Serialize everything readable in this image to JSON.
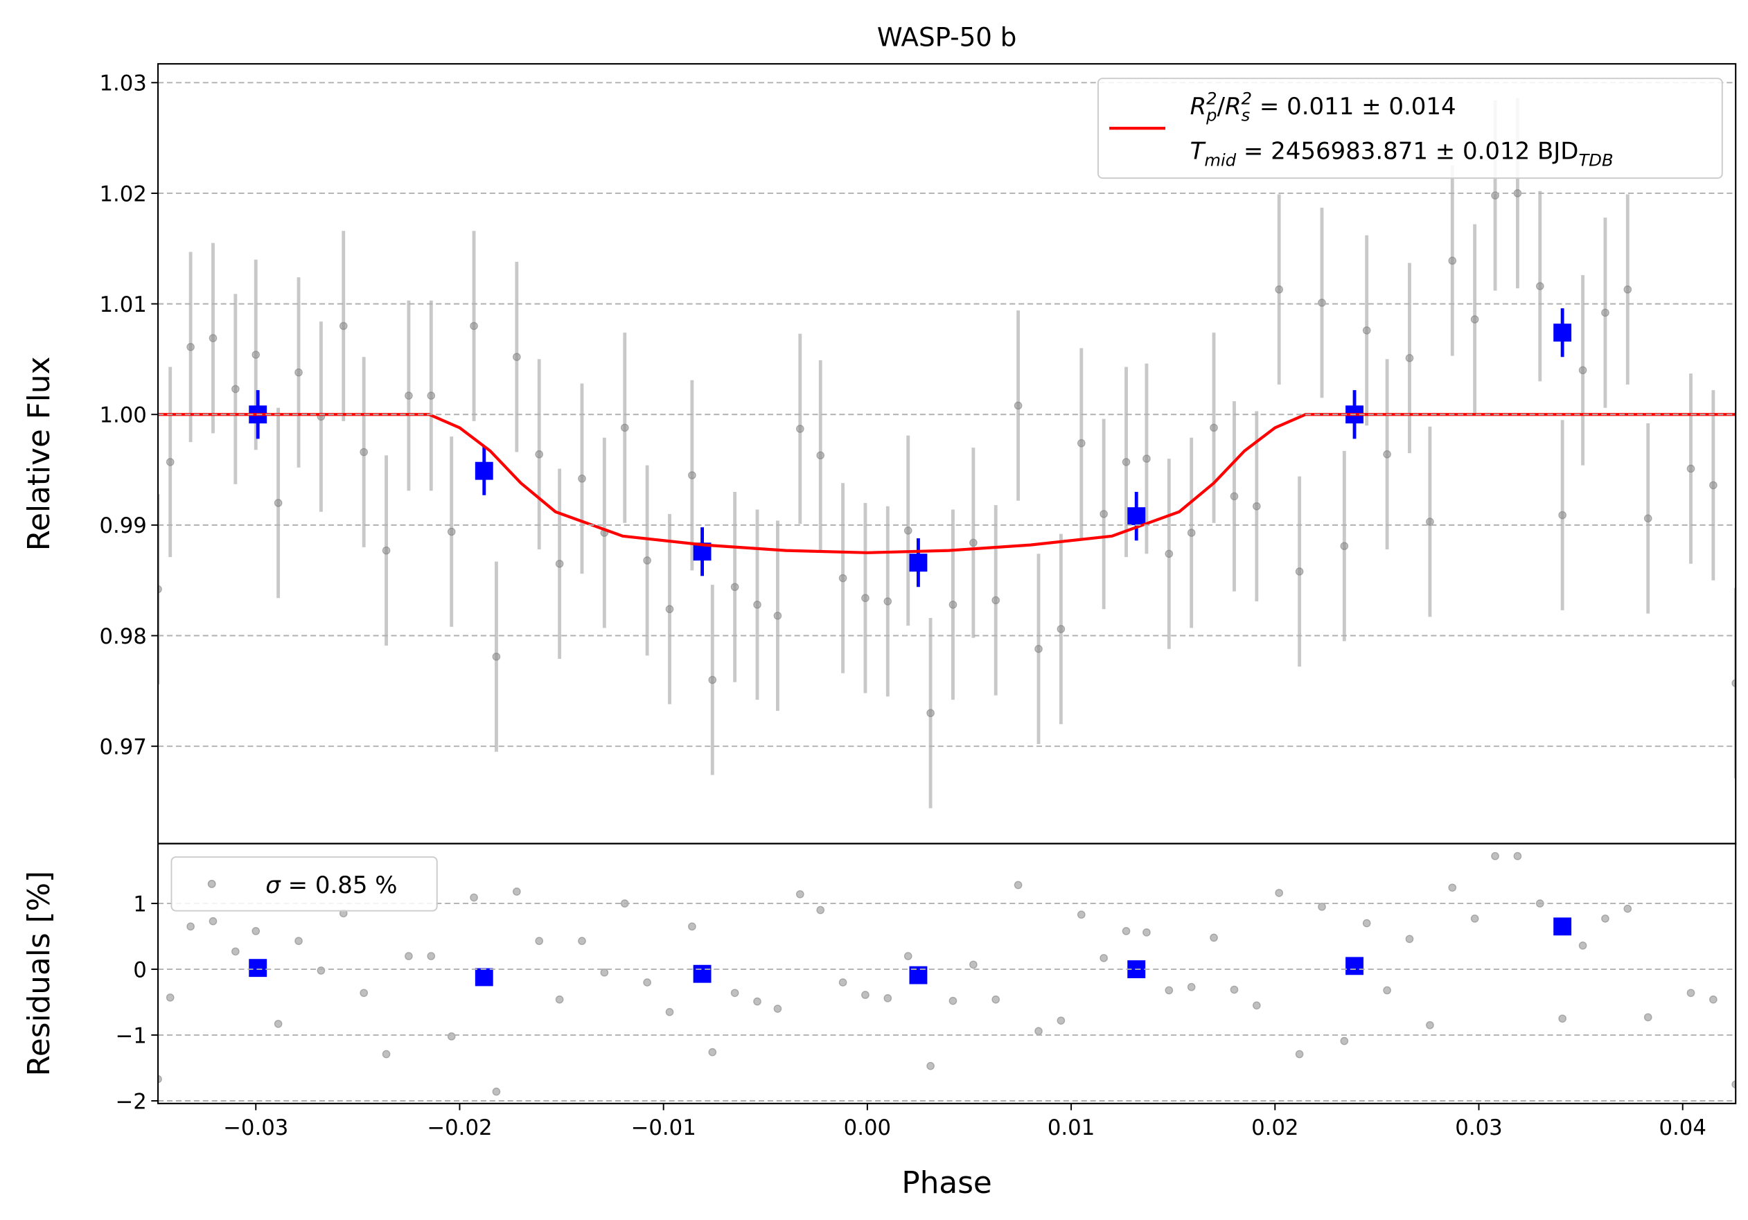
{
  "chart_data": [
    {
      "type": "scatter",
      "title": "WASP-50 b",
      "ylabel": "Relative Flux",
      "xlim": [
        -0.0348,
        0.0426
      ],
      "ylim": [
        0.9612,
        1.0317
      ],
      "yticks": [
        0.97,
        0.98,
        0.99,
        {
          "value": 1.0,
          "label": "1.00"
        },
        1.01,
        1.02,
        1.03
      ],
      "grid": true,
      "legend": "upper right",
      "series": [
        {
          "type": "scatter",
          "color": "#808080",
          "error_color": "#c8c8c8",
          "error": 0.0086,
          "x": [
            -0.0348,
            -0.0342,
            -0.0332,
            -0.0321,
            -0.031,
            -0.03,
            -0.0289,
            -0.0279,
            -0.0268,
            -0.0257,
            -0.0247,
            -0.0236,
            -0.0225,
            -0.0214,
            -0.0204,
            -0.0193,
            -0.0182,
            -0.0172,
            -0.0161,
            -0.0151,
            -0.014,
            -0.0129,
            -0.0119,
            -0.0108,
            -0.0097,
            -0.0086,
            -0.0076,
            -0.0065,
            -0.0054,
            -0.0044,
            -0.0033,
            -0.0023,
            -0.0012,
            -0.0001,
            0.001,
            0.002,
            0.0031,
            0.0042,
            0.0052,
            0.0063,
            0.0074,
            0.0084,
            0.0095,
            0.0105,
            0.0116,
            0.0127,
            0.0137,
            0.0148,
            0.0159,
            0.017,
            0.018,
            0.0191,
            0.0202,
            0.0212,
            0.0223,
            0.0234,
            0.0245,
            0.0255,
            0.0266,
            0.0276,
            0.0287,
            0.0298,
            0.0308,
            0.0319,
            0.033,
            0.0341,
            0.0351,
            0.0362,
            0.0373,
            0.0383,
            0.0404,
            0.0415,
            0.0426
          ],
          "values": [
            0.9842,
            0.9957,
            1.0061,
            1.0069,
            1.0023,
            1.0054,
            0.992,
            1.0038,
            0.9998,
            1.008,
            0.9966,
            0.9877,
            1.0017,
            1.0017,
            0.9894,
            1.008,
            0.9781,
            1.0052,
            0.9964,
            0.9865,
            0.9942,
            0.9893,
            0.9988,
            0.9868,
            0.9824,
            0.9945,
            0.976,
            0.9844,
            0.9828,
            0.9818,
            0.9987,
            0.9963,
            0.9852,
            0.9834,
            0.9831,
            0.9895,
            0.973,
            0.9828,
            0.9884,
            0.9832,
            1.0008,
            0.9788,
            0.9806,
            0.9974,
            0.991,
            0.9957,
            0.996,
            0.9874,
            0.9893,
            0.9988,
            0.9926,
            0.9917,
            1.0113,
            0.9858,
            1.0101,
            0.9881,
            1.0076,
            0.9964,
            1.0051,
            0.9903,
            1.0139,
            1.0086,
            1.0198,
            1.02,
            1.0116,
            0.9909,
            1.004,
            1.0092,
            1.0113,
            0.9906,
            0.9951,
            0.9936,
            0.9757
          ]
        },
        {
          "type": "scatter",
          "marker": "square",
          "color": "#0000ff",
          "error": 0.0022,
          "x": [
            -0.0299,
            -0.0188,
            -0.0081,
            0.0025,
            0.0132,
            0.0239,
            0.0341
          ],
          "values": [
            1.0,
            0.9949,
            0.9876,
            0.9866,
            0.9908,
            1.0,
            1.0074
          ]
        },
        {
          "type": "line",
          "color": "#ff0000",
          "name": [
            [
              [
                "R",
                "i"
              ],
              [
                "p",
                "sub"
              ],
              [
                "2",
                "sup"
              ],
              [
                "/",
                "n"
              ],
              [
                "R",
                "i"
              ],
              [
                "s",
                "sub"
              ],
              [
                "2",
                "sup"
              ],
              [
                " = 0.011 ± 0.014",
                "n"
              ]
            ],
            [
              [
                "T",
                "i"
              ],
              [
                "mid",
                "sub"
              ],
              [
                " = 2456983.871 ± 0.012 BJD",
                "n"
              ],
              [
                "TDB",
                "sub"
              ]
            ]
          ],
          "x": [
            -0.0348,
            -0.0215,
            -0.02,
            -0.0185,
            -0.017,
            -0.0153,
            -0.012,
            -0.008,
            -0.004,
            0,
            0.004,
            0.008,
            0.012,
            0.0153,
            0.017,
            0.0185,
            0.02,
            0.0215,
            0.0426
          ],
          "values": [
            1.0,
            1.0,
            0.9988,
            0.9967,
            0.9938,
            0.9912,
            0.989,
            0.9882,
            0.9877,
            0.9875,
            0.9877,
            0.9882,
            0.989,
            0.9912,
            0.9938,
            0.9967,
            0.9988,
            1.0,
            1.0
          ]
        }
      ]
    },
    {
      "type": "scatter",
      "xlabel": "Phase",
      "ylabel": "Residuals [%]",
      "xlim": [
        -0.0348,
        0.0426
      ],
      "ylim": [
        -2.04,
        1.91
      ],
      "xticks": [
        {
          "value": -0.03,
          "label": "−0.03"
        },
        {
          "value": -0.02,
          "label": "−0.02"
        },
        {
          "value": -0.01,
          "label": "−0.01"
        },
        {
          "value": 0,
          "label": "0.00"
        },
        0.01,
        0.02,
        0.03,
        0.04
      ],
      "yticks": [
        {
          "value": -2,
          "label": "−2"
        },
        {
          "value": -1,
          "label": "−1"
        },
        0,
        1
      ],
      "grid": true,
      "legend": "upper left",
      "series": [
        {
          "type": "scatter",
          "color": "#808080",
          "name": [
            [
              [
                "σ",
                "i"
              ],
              [
                " = 0.85 %",
                "n"
              ]
            ]
          ],
          "x": [
            -0.0348,
            -0.0342,
            -0.0332,
            -0.0321,
            -0.031,
            -0.03,
            -0.0289,
            -0.0279,
            -0.0268,
            -0.0257,
            -0.0247,
            -0.0236,
            -0.0225,
            -0.0214,
            -0.0204,
            -0.0193,
            -0.0182,
            -0.0172,
            -0.0161,
            -0.0151,
            -0.014,
            -0.0129,
            -0.0119,
            -0.0108,
            -0.0097,
            -0.0086,
            -0.0076,
            -0.0065,
            -0.0054,
            -0.0044,
            -0.0033,
            -0.0023,
            -0.0012,
            -0.0001,
            0.001,
            0.002,
            0.0031,
            0.0042,
            0.0052,
            0.0063,
            0.0074,
            0.0084,
            0.0095,
            0.0105,
            0.0116,
            0.0127,
            0.0137,
            0.0148,
            0.0159,
            0.017,
            0.018,
            0.0191,
            0.0202,
            0.0212,
            0.0223,
            0.0234,
            0.0245,
            0.0255,
            0.0266,
            0.0276,
            0.0287,
            0.0298,
            0.0308,
            0.0319,
            0.033,
            0.0341,
            0.0351,
            0.0362,
            0.0373,
            0.0383,
            0.0404,
            0.0415,
            0.0426
          ],
          "values": [
            -1.67,
            -0.43,
            0.65,
            0.73,
            0.27,
            0.58,
            -0.83,
            0.43,
            -0.02,
            0.85,
            -0.36,
            -1.29,
            0.2,
            0.2,
            -1.02,
            1.09,
            -1.86,
            1.18,
            0.43,
            -0.46,
            0.43,
            -0.05,
            1.0,
            -0.2,
            -0.65,
            0.65,
            -1.26,
            -0.36,
            -0.49,
            -0.6,
            1.14,
            0.9,
            -0.2,
            -0.39,
            -0.44,
            0.2,
            -1.47,
            -0.48,
            0.07,
            -0.46,
            1.28,
            -0.94,
            -0.78,
            0.83,
            0.17,
            0.58,
            0.56,
            -0.32,
            -0.27,
            0.48,
            -0.31,
            -0.55,
            1.16,
            -1.29,
            0.95,
            -1.09,
            0.7,
            -0.32,
            0.46,
            -0.85,
            1.24,
            0.77,
            1.72,
            1.72,
            1.0,
            -0.75,
            0.36,
            0.77,
            0.92,
            -0.73,
            -0.36,
            -0.46,
            -1.75
          ]
        },
        {
          "type": "scatter",
          "marker": "square",
          "color": "#0000ff",
          "x": [
            -0.0299,
            -0.0188,
            -0.0081,
            0.0025,
            0.0132,
            0.0239,
            0.0341
          ],
          "values": [
            0.02,
            -0.12,
            -0.07,
            -0.09,
            0.0,
            0.05,
            0.65
          ]
        }
      ]
    }
  ]
}
